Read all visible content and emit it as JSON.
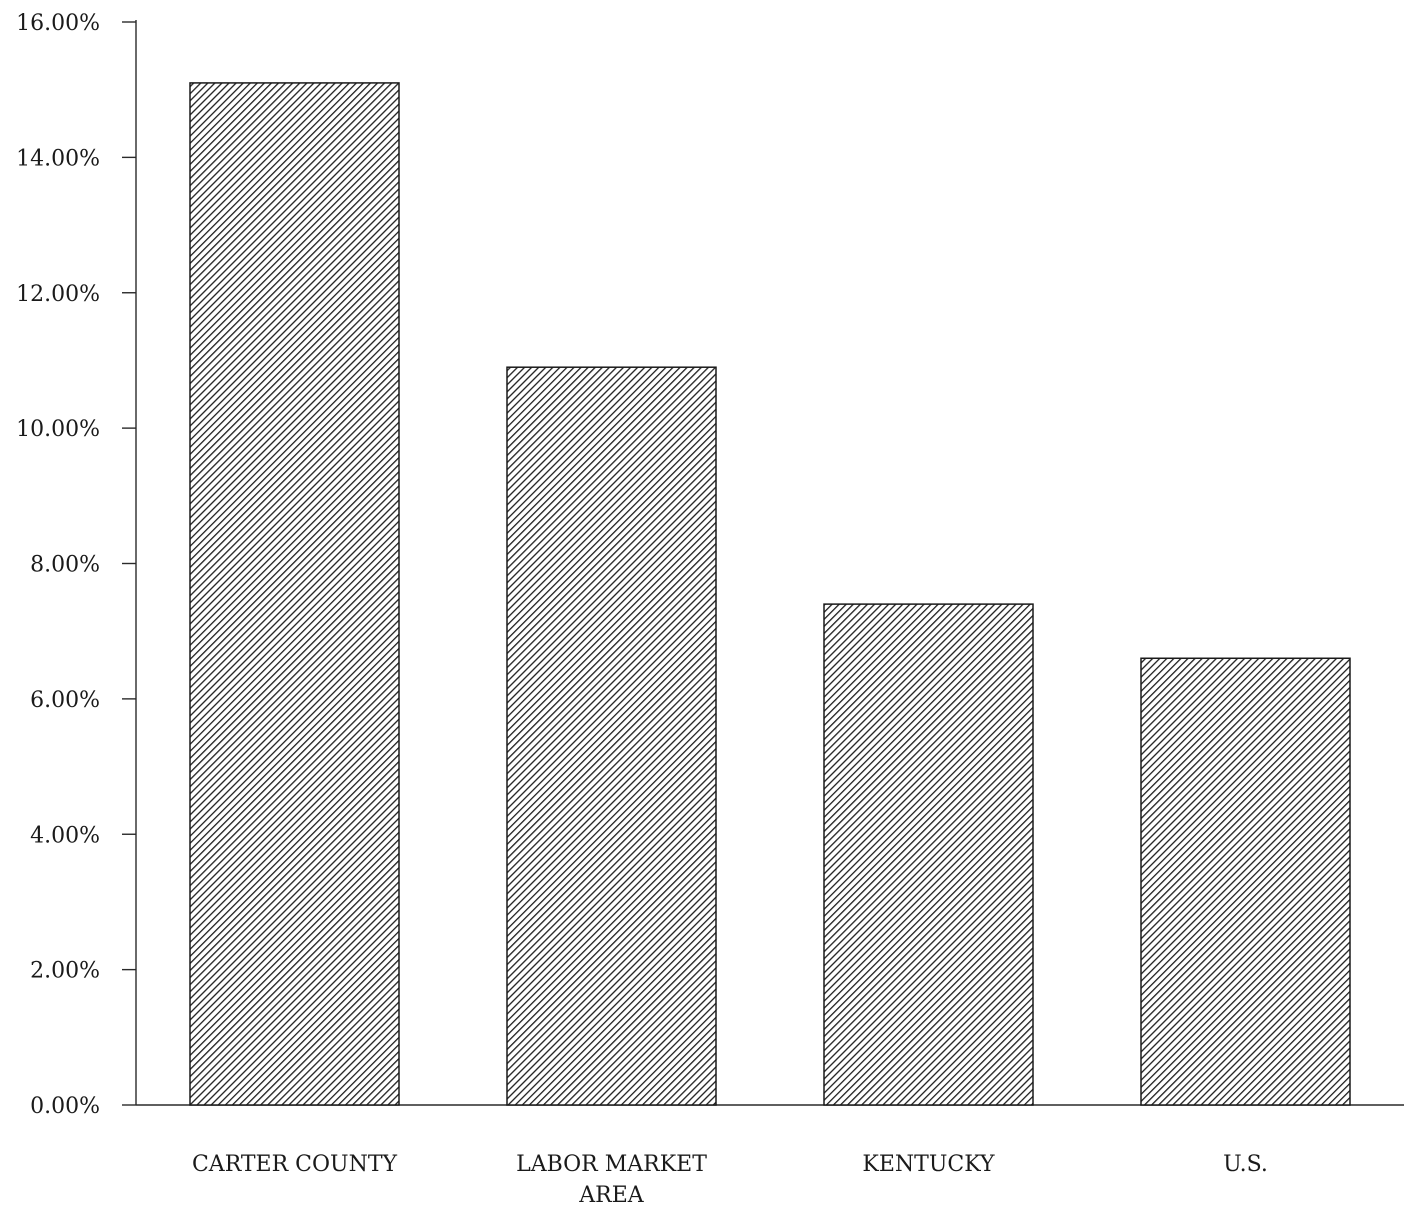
{
  "chart_data": {
    "type": "bar",
    "title": "",
    "xlabel": "",
    "ylabel": "",
    "categories": [
      "CARTER COUNTY",
      "LABOR MARKET AREA",
      "KENTUCKY",
      "U.S."
    ],
    "category_lines": [
      [
        "CARTER COUNTY"
      ],
      [
        "LABOR MARKET",
        "AREA"
      ],
      [
        "KENTUCKY"
      ],
      [
        "U.S."
      ]
    ],
    "values": [
      15.1,
      10.9,
      7.4,
      6.6
    ],
    "ylim": [
      0,
      16
    ],
    "yticks": [
      0,
      2,
      4,
      6,
      8,
      10,
      12,
      14,
      16
    ],
    "ytick_labels": [
      "0.00%",
      "2.00%",
      "4.00%",
      "6.00%",
      "8.00%",
      "10.00%",
      "12.00%",
      "14.00%",
      "16.00%"
    ],
    "grid": false,
    "legend": "none",
    "colors": {
      "bar_stroke": "#1a1a1a",
      "hatch_dark": "#1e1e1e",
      "hatch_light": "#ffffff",
      "axis": "#2a2a2a"
    }
  }
}
